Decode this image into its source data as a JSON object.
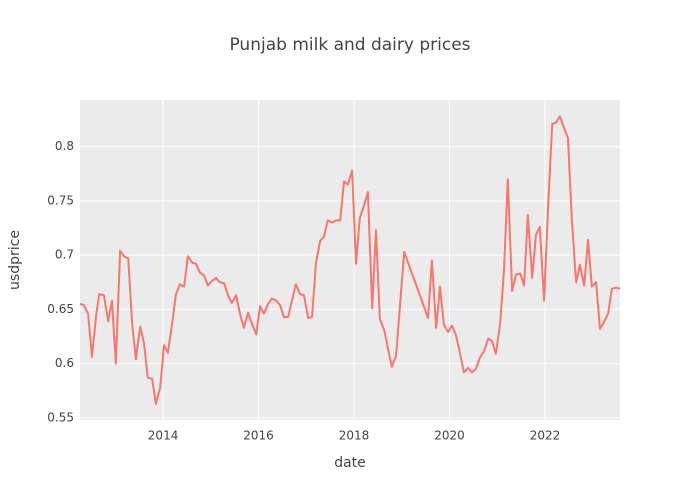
{
  "chart_data": {
    "type": "line",
    "title": "Punjab milk and dairy prices",
    "x_label": "date",
    "y_label": "usdprice",
    "x": [
      2012.26,
      2012.34,
      2012.43,
      2012.51,
      2012.6,
      2012.66,
      2012.76,
      2012.85,
      2012.93,
      2013.01,
      2013.1,
      2013.18,
      2013.27,
      2013.35,
      2013.43,
      2013.52,
      2013.6,
      2013.68,
      2013.77,
      2013.85,
      2013.94,
      2014.02,
      2014.1,
      2014.19,
      2014.27,
      2014.35,
      2014.44,
      2014.52,
      2014.61,
      2014.69,
      2014.77,
      2014.86,
      2014.94,
      2015.02,
      2015.11,
      2015.19,
      2015.28,
      2015.36,
      2015.44,
      2015.53,
      2015.61,
      2015.69,
      2015.78,
      2015.86,
      2015.95,
      2016.03,
      2016.11,
      2016.2,
      2016.28,
      2016.37,
      2016.45,
      2016.53,
      2016.62,
      2016.7,
      2016.78,
      2016.87,
      2016.95,
      2017.04,
      2017.12,
      2017.2,
      2017.29,
      2017.37,
      2017.45,
      2017.54,
      2017.62,
      2017.71,
      2017.79,
      2017.87,
      2017.96,
      2018.04,
      2018.12,
      2018.21,
      2018.29,
      2018.38,
      2018.46,
      2018.54,
      2018.63,
      2018.71,
      2018.79,
      2018.88,
      2019.05,
      2019.55,
      2019.63,
      2019.72,
      2019.8,
      2019.88,
      2019.97,
      2020.05,
      2020.13,
      2020.22,
      2020.3,
      2020.39,
      2020.47,
      2020.55,
      2020.64,
      2020.72,
      2020.81,
      2020.89,
      2020.97,
      2021.06,
      2021.14,
      2021.22,
      2021.31,
      2021.39,
      2021.48,
      2021.56,
      2021.64,
      2021.73,
      2021.81,
      2021.89,
      2021.98,
      2022.06,
      2022.15,
      2022.23,
      2022.31,
      2022.4,
      2022.48,
      2022.56,
      2022.65,
      2022.73,
      2022.82,
      2022.9,
      2022.98,
      2023.07,
      2023.15,
      2023.23,
      2023.32,
      2023.4,
      2023.49,
      2023.57
    ],
    "series": [
      {
        "name": "usdprice",
        "color": "#f8766d",
        "values": [
          0.655,
          0.654,
          0.646,
          0.606,
          0.645,
          0.664,
          0.663,
          0.639,
          0.658,
          0.6,
          0.704,
          0.699,
          0.697,
          0.638,
          0.604,
          0.634,
          0.619,
          0.587,
          0.586,
          0.563,
          0.578,
          0.617,
          0.61,
          0.637,
          0.664,
          0.673,
          0.671,
          0.699,
          0.693,
          0.692,
          0.684,
          0.681,
          0.672,
          0.676,
          0.679,
          0.675,
          0.674,
          0.663,
          0.656,
          0.663,
          0.646,
          0.633,
          0.647,
          0.637,
          0.627,
          0.653,
          0.646,
          0.655,
          0.66,
          0.658,
          0.654,
          0.643,
          0.643,
          0.658,
          0.673,
          0.664,
          0.663,
          0.642,
          0.643,
          0.692,
          0.713,
          0.717,
          0.732,
          0.73,
          0.732,
          0.732,
          0.768,
          0.765,
          0.778,
          0.692,
          0.734,
          0.746,
          0.758,
          0.651,
          0.723,
          0.641,
          0.631,
          0.614,
          0.597,
          0.607,
          0.703,
          0.642,
          0.695,
          0.633,
          0.671,
          0.636,
          0.629,
          0.635,
          0.627,
          0.609,
          0.592,
          0.596,
          0.592,
          0.595,
          0.606,
          0.611,
          0.623,
          0.621,
          0.609,
          0.637,
          0.686,
          0.77,
          0.667,
          0.682,
          0.683,
          0.672,
          0.737,
          0.679,
          0.719,
          0.726,
          0.658,
          0.74,
          0.821,
          0.822,
          0.828,
          0.817,
          0.808,
          0.734,
          0.675,
          0.691,
          0.672,
          0.714,
          0.671,
          0.675,
          0.632,
          0.638,
          0.646,
          0.669,
          0.67,
          0.669
        ]
      }
    ],
    "xlim": [
      2012.26,
      2023.57
    ],
    "xticks": [
      2014,
      2016,
      2018,
      2020,
      2022
    ],
    "ylim": [
      0.548,
      0.843
    ],
    "yticks": [
      0.55,
      0.6,
      0.65,
      0.7,
      0.75,
      0.8
    ],
    "grid": true
  }
}
